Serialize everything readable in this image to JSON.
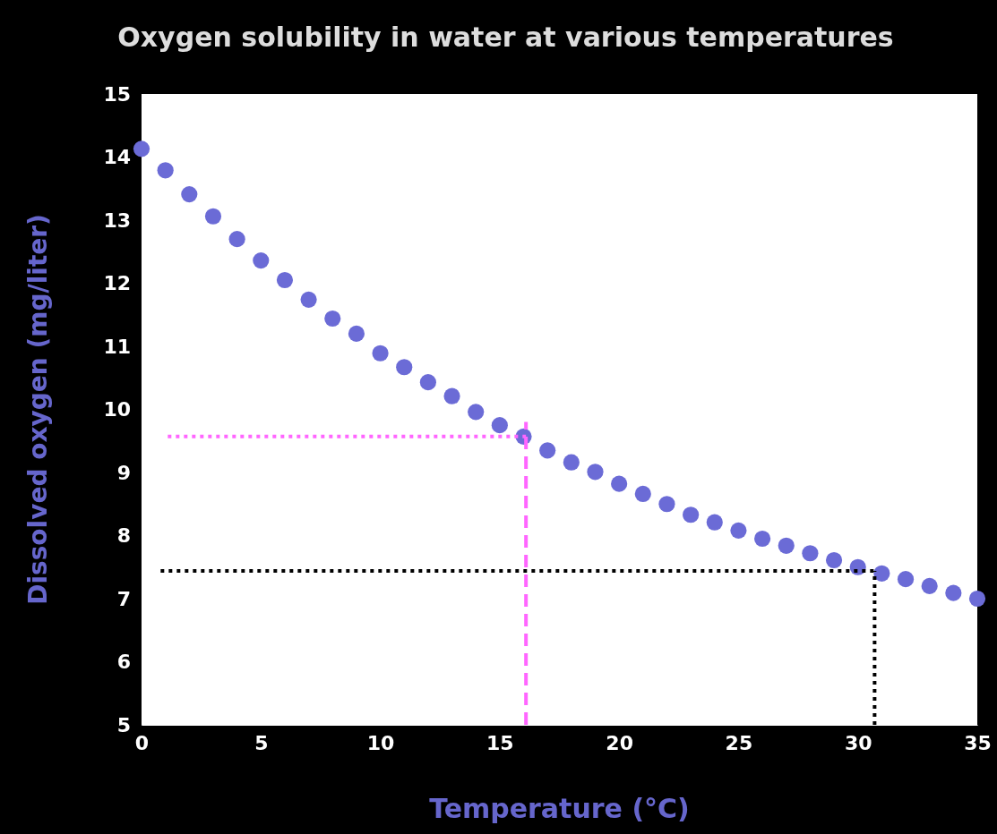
{
  "chart_data": {
    "type": "scatter",
    "title": "Oxygen solubility in water at various temperatures",
    "xlabel": "Temperature (°C)",
    "ylabel": "Dissolved oxygen (mg/liter)",
    "xlim": [
      0,
      35
    ],
    "xticks": [
      0,
      5,
      10,
      15,
      20,
      25,
      30,
      35
    ],
    "ylim": [
      5,
      15
    ],
    "yticks": [
      5,
      6,
      7,
      8,
      9,
      10,
      11,
      12,
      13,
      14,
      15
    ],
    "grid": false,
    "series": [
      {
        "type": "scatter",
        "marker": "circle",
        "color": "#6b6bd6",
        "x": [
          0,
          1,
          2,
          3,
          4,
          5,
          6,
          7,
          8,
          9,
          10,
          11,
          12,
          13,
          14,
          15,
          16,
          17,
          18,
          19,
          20,
          21,
          22,
          23,
          24,
          25,
          26,
          27,
          28,
          29,
          30,
          31,
          32,
          33,
          34,
          35
        ],
        "values": [
          14.13,
          13.79,
          13.41,
          13.06,
          12.7,
          12.36,
          12.05,
          11.74,
          11.44,
          11.2,
          10.89,
          10.67,
          10.43,
          10.21,
          9.96,
          9.75,
          9.57,
          9.35,
          9.16,
          9.01,
          8.82,
          8.66,
          8.5,
          8.33,
          8.21,
          8.08,
          7.95,
          7.84,
          7.72,
          7.61,
          7.5,
          7.4,
          7.31,
          7.2,
          7.09,
          7.0
        ]
      },
      {
        "type": "line",
        "color": "#ff66ff",
        "line_style": "dotted",
        "x": [
          1.1,
          16.1
        ],
        "values": [
          9.57,
          9.57
        ]
      },
      {
        "type": "line",
        "color": "#ff66ff",
        "line_style": "dashed",
        "x": [
          16.1,
          16.1
        ],
        "values": [
          5,
          9.8
        ]
      },
      {
        "type": "line",
        "color": "#000000",
        "line_style": "dotted",
        "x": [
          0.8,
          30.7
        ],
        "values": [
          7.44,
          7.44
        ]
      },
      {
        "type": "line",
        "color": "#000000",
        "line_style": "dotted",
        "x": [
          30.7,
          30.7
        ],
        "values": [
          5,
          7.44
        ]
      }
    ]
  }
}
